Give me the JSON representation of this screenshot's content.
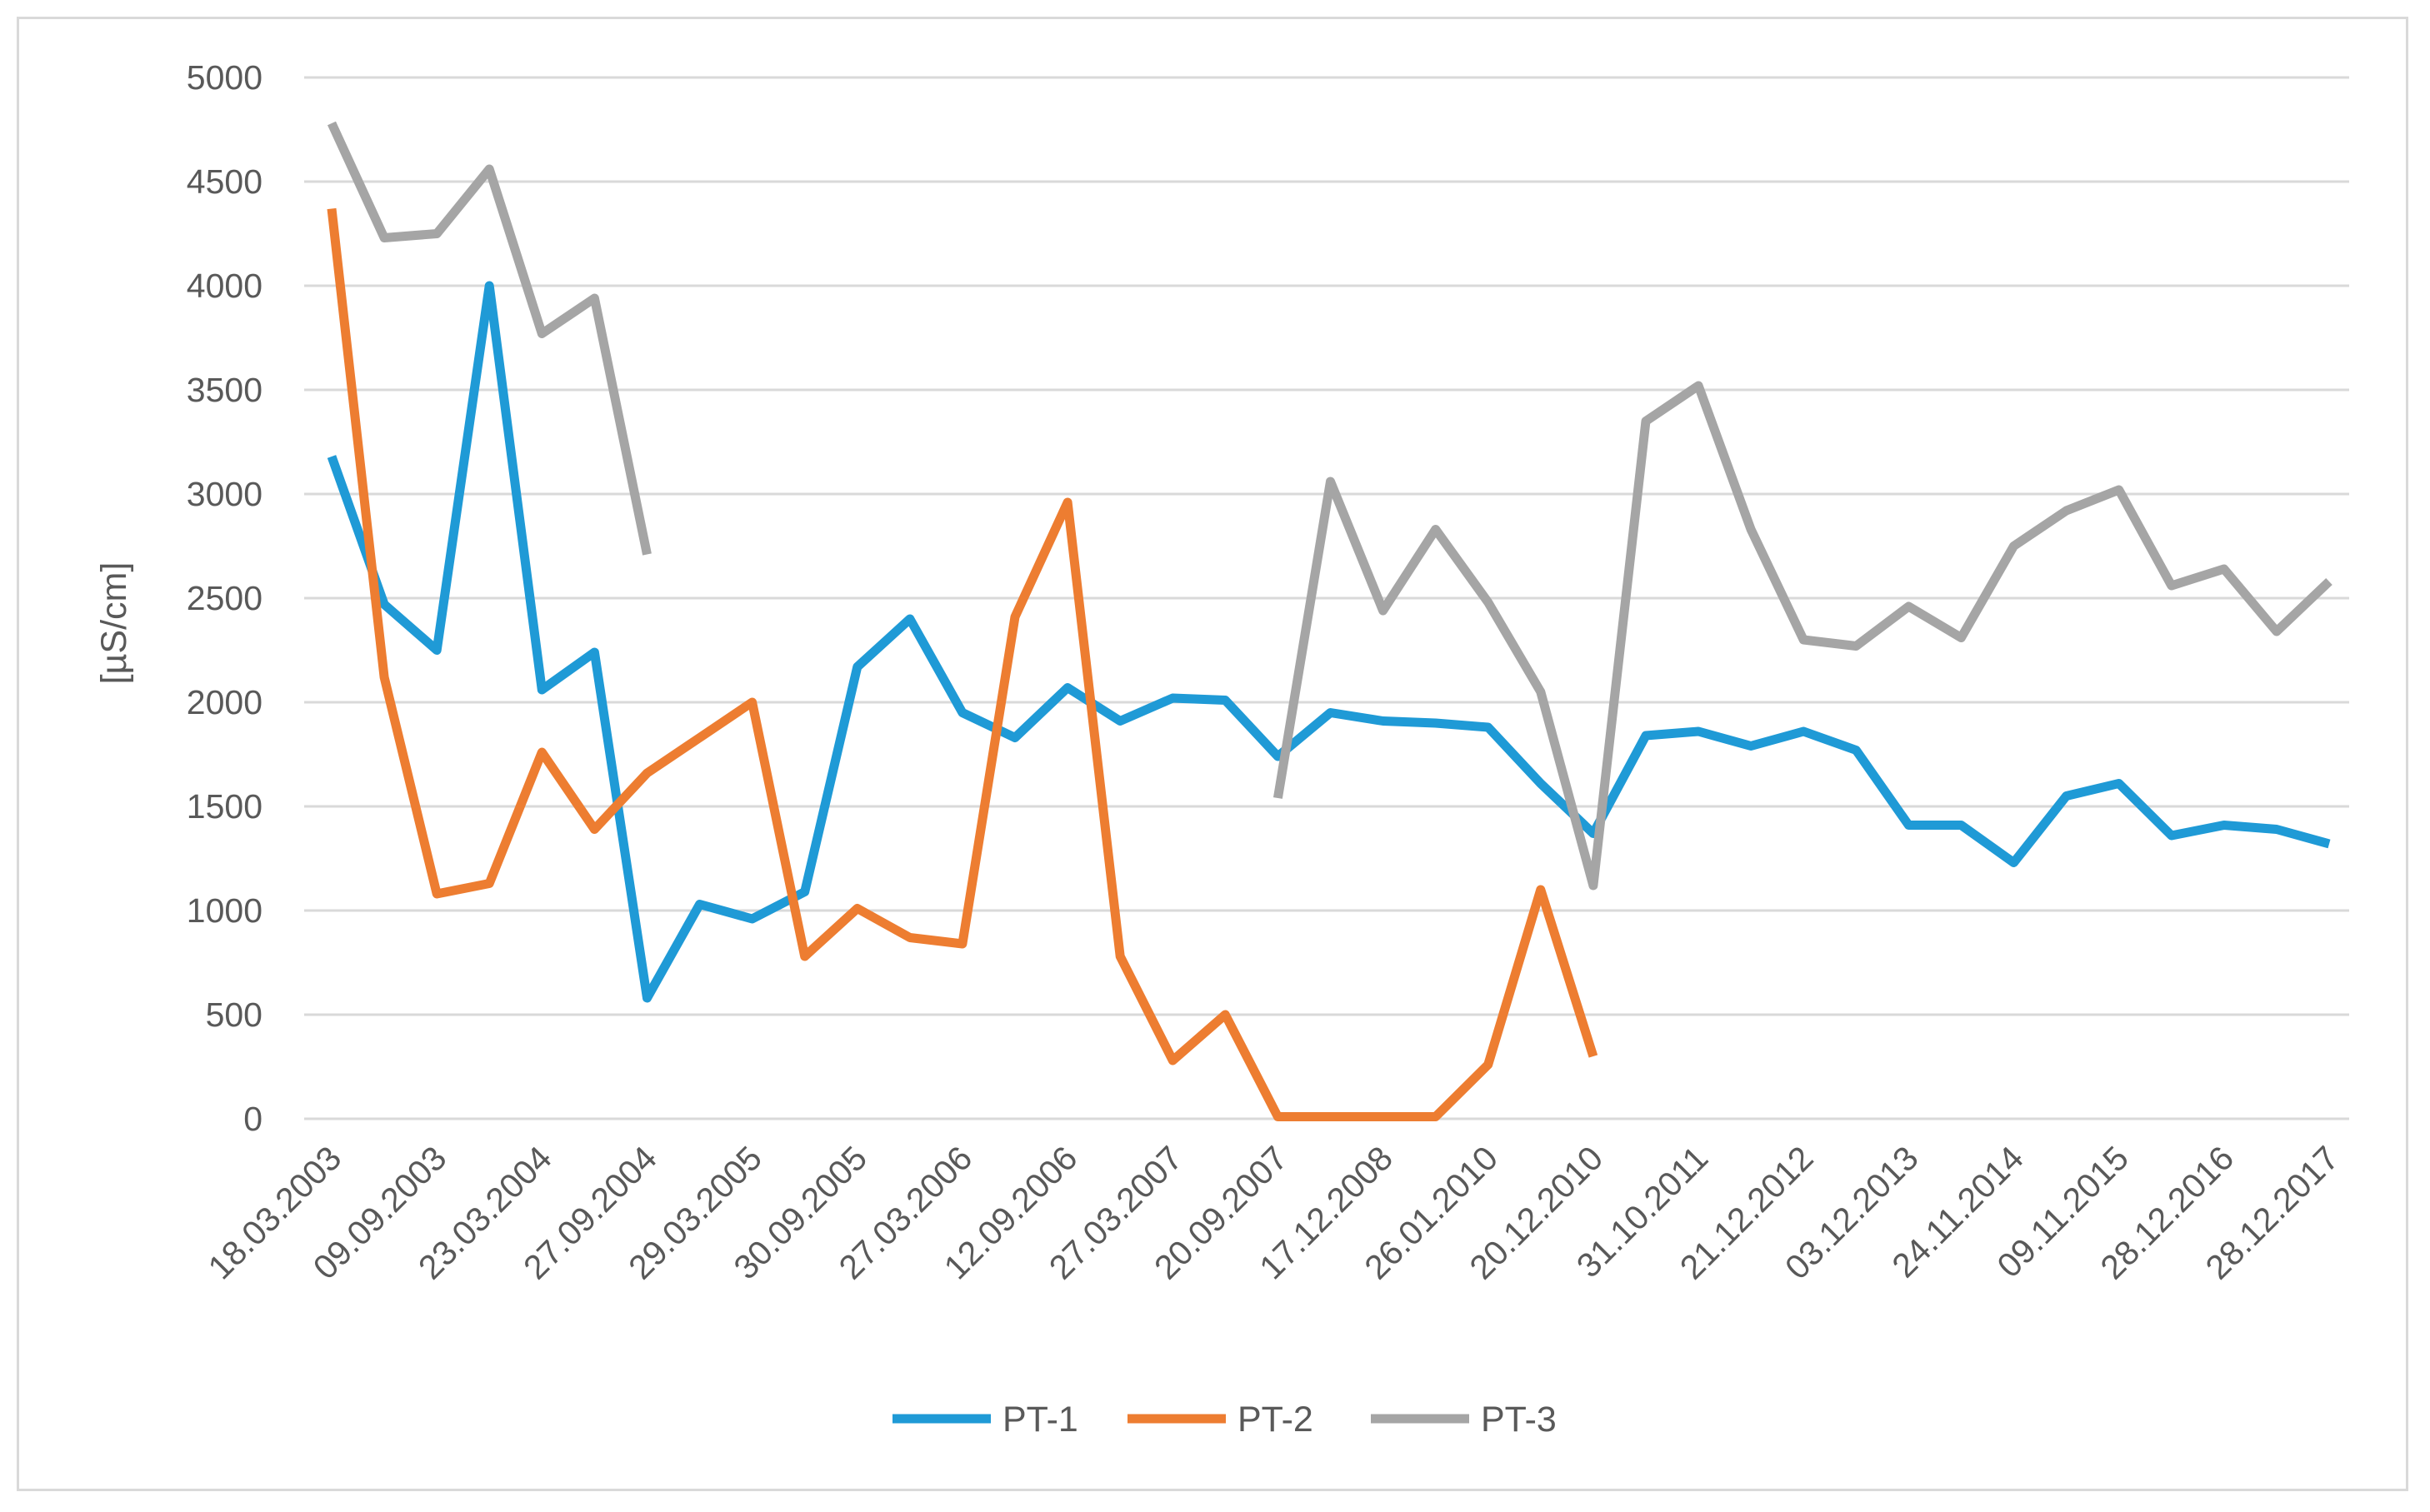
{
  "chart_data": {
    "type": "line",
    "title": "",
    "xlabel": "",
    "ylabel": "[µS/cm]",
    "ylim": [
      0,
      5000
    ],
    "yticks": [
      0,
      500,
      1000,
      1500,
      2000,
      2500,
      3000,
      3500,
      4000,
      4500,
      5000
    ],
    "grid": true,
    "legend_position": "bottom",
    "x": [
      "18.03.2003",
      "",
      "09.09.2003",
      "",
      "23.03.2004",
      "",
      "27.09.2004",
      "",
      "29.03.2005",
      "",
      "30.09.2005",
      "",
      "27.03.2006",
      "",
      "12.09.2006",
      "",
      "27.03.2007",
      "",
      "20.09.2007",
      "",
      "17.12.2008",
      "",
      "26.01.2010",
      "",
      "20.12.2010",
      "",
      "31.10.2011",
      "",
      "21.12.2012",
      "",
      "03.12.2013",
      "",
      "24.11.2014",
      "",
      "09.11.2015",
      "",
      "28.12.2016",
      "",
      "28.12.2017"
    ],
    "series": [
      {
        "name": "PT-1",
        "color": "#1f9ad6",
        "values": [
          3180,
          2470,
          2250,
          4000,
          2060,
          2240,
          580,
          1030,
          960,
          1090,
          2170,
          2400,
          1950,
          1830,
          2070,
          1910,
          2020,
          2010,
          1740,
          1950,
          1910,
          1900,
          1880,
          1610,
          1370,
          1840,
          1860,
          1790,
          1860,
          1770,
          1410,
          1410,
          1230,
          1550,
          1610,
          1360,
          1410,
          1390,
          1320
        ]
      },
      {
        "name": "PT-2",
        "color": "#ed7d31",
        "values": [
          4370,
          2120,
          1080,
          1130,
          1760,
          1390,
          1660,
          1830,
          2000,
          780,
          1010,
          870,
          840,
          2410,
          2960,
          780,
          280,
          500,
          10,
          10,
          10,
          10,
          260,
          1100,
          300,
          null,
          null,
          null,
          null,
          null,
          null,
          null,
          null,
          null,
          null,
          null,
          null,
          null,
          null
        ]
      },
      {
        "name": "PT-3",
        "color": "#a5a5a5",
        "values": [
          4780,
          4230,
          4250,
          4560,
          3770,
          3940,
          2710,
          null,
          null,
          null,
          null,
          null,
          null,
          null,
          null,
          null,
          null,
          null,
          1540,
          3060,
          2440,
          2830,
          2480,
          2050,
          1120,
          3350,
          3520,
          2830,
          2300,
          2270,
          2460,
          2310,
          2750,
          2920,
          3020,
          2560,
          2640,
          2340,
          2580
        ]
      }
    ]
  }
}
